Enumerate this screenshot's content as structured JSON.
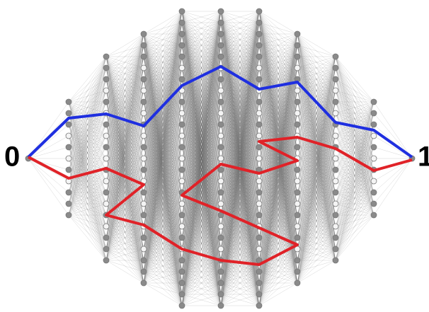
{
  "labels": {
    "source": "0",
    "sink": "1"
  }
}
